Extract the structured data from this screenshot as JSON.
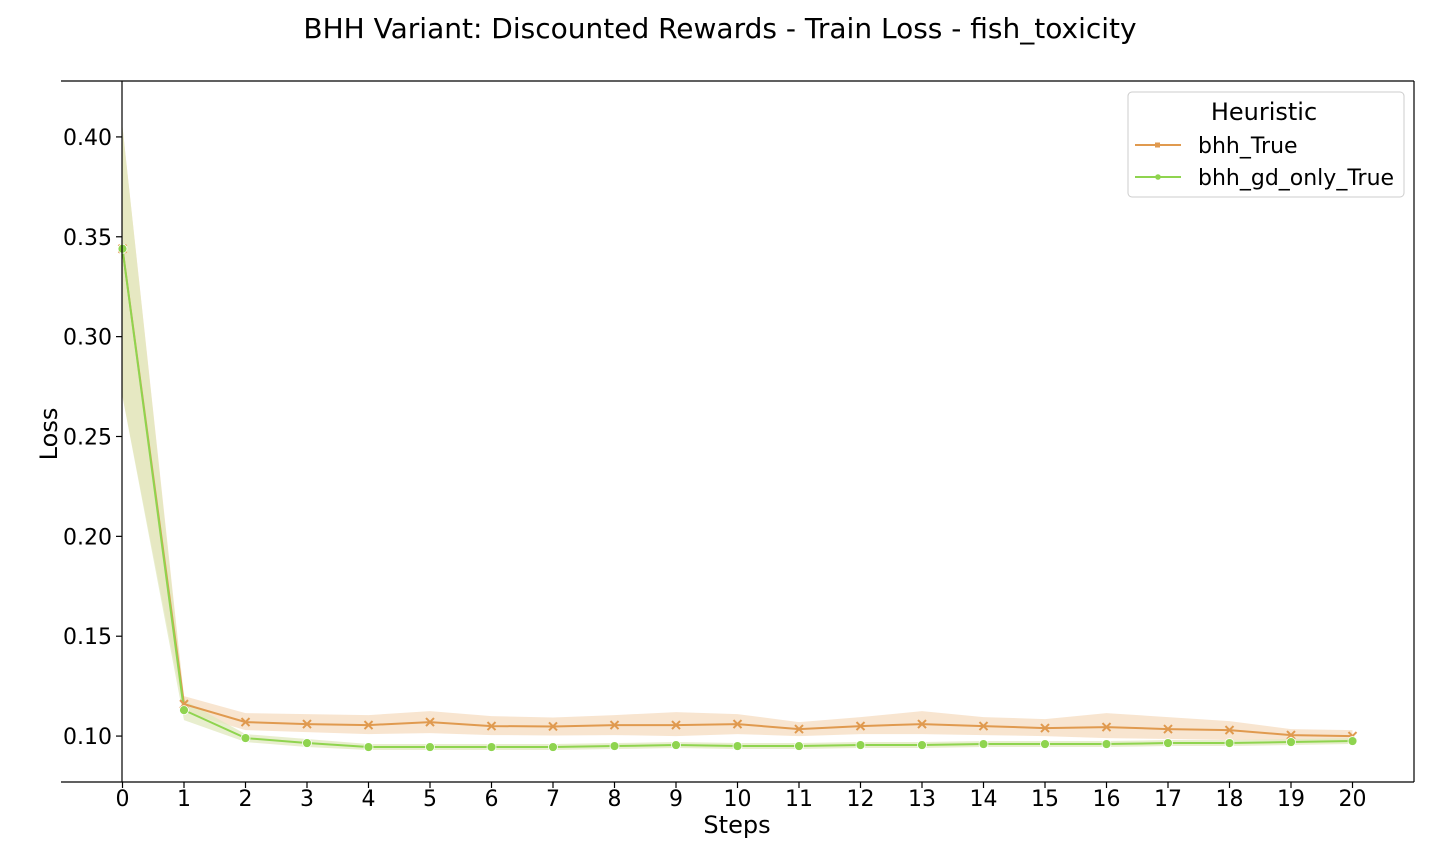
{
  "chart_data": {
    "type": "line",
    "title": "BHH Variant: Discounted Rewards - Train Loss - fish_toxicity",
    "xlabel": "Steps",
    "ylabel": "Loss",
    "x": [
      0,
      1,
      2,
      3,
      4,
      5,
      6,
      7,
      8,
      9,
      10,
      11,
      12,
      13,
      14,
      15,
      16,
      17,
      18,
      19,
      20
    ],
    "xlim": [
      -1,
      21
    ],
    "ylim": [
      0.077,
      0.428
    ],
    "yticks": [
      0.1,
      0.15,
      0.2,
      0.25,
      0.3,
      0.35,
      0.4
    ],
    "ytick_labels": [
      "0.10",
      "0.15",
      "0.20",
      "0.25",
      "0.30",
      "0.35",
      "0.40"
    ],
    "xtick_labels": [
      "0",
      "1",
      "2",
      "3",
      "4",
      "5",
      "6",
      "7",
      "8",
      "9",
      "10",
      "11",
      "12",
      "13",
      "14",
      "15",
      "16",
      "17",
      "18",
      "19",
      "20"
    ],
    "legend": {
      "title": "Heuristic",
      "position": "top-right"
    },
    "series": [
      {
        "name": "bhh_True",
        "color": "#e09a4f",
        "band_color": "#f5dcc0",
        "marker": "x",
        "values": [
          0.344,
          0.116,
          0.107,
          0.106,
          0.1055,
          0.107,
          0.105,
          0.1048,
          0.1055,
          0.1055,
          0.106,
          0.1035,
          0.105,
          0.106,
          0.105,
          0.104,
          0.1045,
          0.1035,
          0.103,
          0.1005,
          0.1
        ],
        "lower": [
          0.27,
          0.112,
          0.103,
          0.102,
          0.101,
          0.1015,
          0.1005,
          0.1003,
          0.1005,
          0.1,
          0.101,
          0.1,
          0.101,
          0.101,
          0.1005,
          0.1,
          0.099,
          0.0985,
          0.098,
          0.0975,
          0.097
        ],
        "upper": [
          0.405,
          0.12,
          0.1115,
          0.111,
          0.1105,
          0.1125,
          0.11,
          0.1093,
          0.1105,
          0.112,
          0.111,
          0.107,
          0.1095,
          0.1125,
          0.1095,
          0.1085,
          0.1115,
          0.1095,
          0.1075,
          0.1035,
          0.103
        ]
      },
      {
        "name": "bhh_gd_only_True",
        "color": "#8fd44f",
        "band_color": "#e0e8bd",
        "marker": "o",
        "values": [
          0.344,
          0.113,
          0.099,
          0.0965,
          0.0945,
          0.0945,
          0.0945,
          0.0945,
          0.095,
          0.0955,
          0.095,
          0.095,
          0.0955,
          0.0955,
          0.096,
          0.096,
          0.096,
          0.0965,
          0.0965,
          0.097,
          0.0975
        ],
        "lower": [
          0.27,
          0.108,
          0.097,
          0.0945,
          0.093,
          0.093,
          0.093,
          0.093,
          0.0935,
          0.094,
          0.0935,
          0.0935,
          0.094,
          0.094,
          0.0945,
          0.0945,
          0.0945,
          0.095,
          0.095,
          0.0955,
          0.096
        ],
        "upper": [
          0.405,
          0.118,
          0.101,
          0.0985,
          0.096,
          0.096,
          0.096,
          0.096,
          0.0965,
          0.097,
          0.0965,
          0.0965,
          0.097,
          0.097,
          0.0975,
          0.0975,
          0.0975,
          0.098,
          0.098,
          0.0985,
          0.099
        ]
      }
    ]
  }
}
